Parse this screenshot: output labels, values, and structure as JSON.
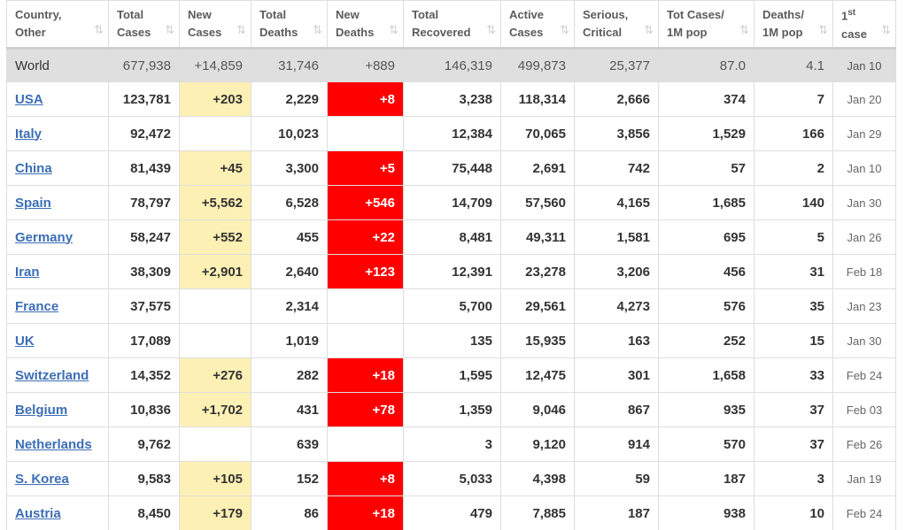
{
  "headers": [
    {
      "l1": "Country,",
      "l2": "Other"
    },
    {
      "l1": "Total",
      "l2": "Cases"
    },
    {
      "l1": "New",
      "l2": "Cases"
    },
    {
      "l1": "Total",
      "l2": "Deaths"
    },
    {
      "l1": "New",
      "l2": "Deaths"
    },
    {
      "l1": "Total",
      "l2": "Recovered"
    },
    {
      "l1": "Active",
      "l2": "Cases"
    },
    {
      "l1": "Serious,",
      "l2": "Critical"
    },
    {
      "l1": "Tot Cases/",
      "l2": "1M pop"
    },
    {
      "l1": "Deaths/",
      "l2": "1M pop"
    },
    {
      "l1": "1",
      "sup": "st",
      "l2": "case"
    }
  ],
  "sort_icon": "⇅",
  "rows": [
    {
      "country": "World",
      "total_cases": "677,938",
      "new_cases": "+14,859",
      "total_deaths": "31,746",
      "new_deaths": "+889",
      "recovered": "146,319",
      "active": "499,873",
      "serious": "25,377",
      "cases_per_1m": "87.0",
      "deaths_per_1m": "4.1",
      "first_case": "Jan 10"
    },
    {
      "country": "USA",
      "total_cases": "123,781",
      "new_cases": "+203",
      "total_deaths": "2,229",
      "new_deaths": "+8",
      "recovered": "3,238",
      "active": "118,314",
      "serious": "2,666",
      "cases_per_1m": "374",
      "deaths_per_1m": "7",
      "first_case": "Jan 20"
    },
    {
      "country": "Italy",
      "total_cases": "92,472",
      "new_cases": "",
      "total_deaths": "10,023",
      "new_deaths": "",
      "recovered": "12,384",
      "active": "70,065",
      "serious": "3,856",
      "cases_per_1m": "1,529",
      "deaths_per_1m": "166",
      "first_case": "Jan 29"
    },
    {
      "country": "China",
      "total_cases": "81,439",
      "new_cases": "+45",
      "total_deaths": "3,300",
      "new_deaths": "+5",
      "recovered": "75,448",
      "active": "2,691",
      "serious": "742",
      "cases_per_1m": "57",
      "deaths_per_1m": "2",
      "first_case": "Jan 10"
    },
    {
      "country": "Spain",
      "total_cases": "78,797",
      "new_cases": "+5,562",
      "total_deaths": "6,528",
      "new_deaths": "+546",
      "recovered": "14,709",
      "active": "57,560",
      "serious": "4,165",
      "cases_per_1m": "1,685",
      "deaths_per_1m": "140",
      "first_case": "Jan 30"
    },
    {
      "country": "Germany",
      "total_cases": "58,247",
      "new_cases": "+552",
      "total_deaths": "455",
      "new_deaths": "+22",
      "recovered": "8,481",
      "active": "49,311",
      "serious": "1,581",
      "cases_per_1m": "695",
      "deaths_per_1m": "5",
      "first_case": "Jan 26"
    },
    {
      "country": "Iran",
      "total_cases": "38,309",
      "new_cases": "+2,901",
      "total_deaths": "2,640",
      "new_deaths": "+123",
      "recovered": "12,391",
      "active": "23,278",
      "serious": "3,206",
      "cases_per_1m": "456",
      "deaths_per_1m": "31",
      "first_case": "Feb 18"
    },
    {
      "country": "France",
      "total_cases": "37,575",
      "new_cases": "",
      "total_deaths": "2,314",
      "new_deaths": "",
      "recovered": "5,700",
      "active": "29,561",
      "serious": "4,273",
      "cases_per_1m": "576",
      "deaths_per_1m": "35",
      "first_case": "Jan 23"
    },
    {
      "country": "UK",
      "total_cases": "17,089",
      "new_cases": "",
      "total_deaths": "1,019",
      "new_deaths": "",
      "recovered": "135",
      "active": "15,935",
      "serious": "163",
      "cases_per_1m": "252",
      "deaths_per_1m": "15",
      "first_case": "Jan 30"
    },
    {
      "country": "Switzerland",
      "total_cases": "14,352",
      "new_cases": "+276",
      "total_deaths": "282",
      "new_deaths": "+18",
      "recovered": "1,595",
      "active": "12,475",
      "serious": "301",
      "cases_per_1m": "1,658",
      "deaths_per_1m": "33",
      "first_case": "Feb 24"
    },
    {
      "country": "Belgium",
      "total_cases": "10,836",
      "new_cases": "+1,702",
      "total_deaths": "431",
      "new_deaths": "+78",
      "recovered": "1,359",
      "active": "9,046",
      "serious": "867",
      "cases_per_1m": "935",
      "deaths_per_1m": "37",
      "first_case": "Feb 03"
    },
    {
      "country": "Netherlands",
      "total_cases": "9,762",
      "new_cases": "",
      "total_deaths": "639",
      "new_deaths": "",
      "recovered": "3",
      "active": "9,120",
      "serious": "914",
      "cases_per_1m": "570",
      "deaths_per_1m": "37",
      "first_case": "Feb 26"
    },
    {
      "country": "S. Korea",
      "total_cases": "9,583",
      "new_cases": "+105",
      "total_deaths": "152",
      "new_deaths": "+8",
      "recovered": "5,033",
      "active": "4,398",
      "serious": "59",
      "cases_per_1m": "187",
      "deaths_per_1m": "3",
      "first_case": "Jan 19"
    },
    {
      "country": "Austria",
      "total_cases": "8,450",
      "new_cases": "+179",
      "total_deaths": "86",
      "new_deaths": "+18",
      "recovered": "479",
      "active": "7,885",
      "serious": "187",
      "cases_per_1m": "938",
      "deaths_per_1m": "10",
      "first_case": "Feb 24"
    }
  ],
  "colors": {
    "link": "#3b6eb5",
    "new_cases_highlight": "#fdf0b4",
    "new_deaths_highlight": "#ff0000",
    "world_row": "#dfdfdf"
  }
}
